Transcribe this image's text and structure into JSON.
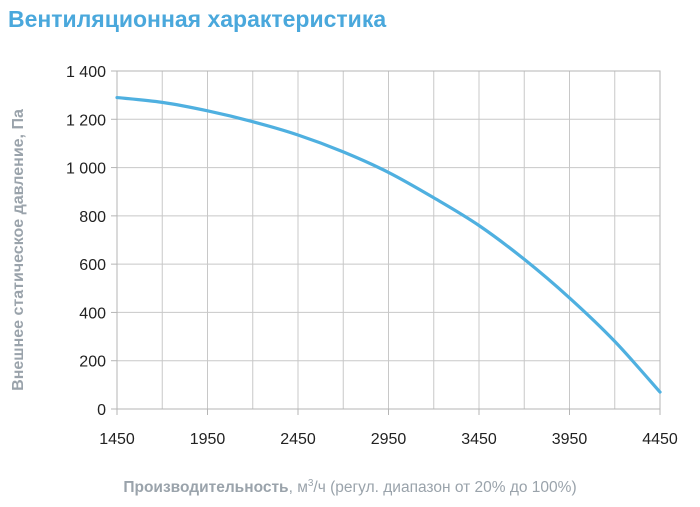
{
  "header": {
    "title": "Вентиляционная характеристика"
  },
  "chart_data": {
    "type": "line",
    "title": "Вентиляционная характеристика",
    "ylabel": "Внешнее статическое давление, Па",
    "xlabel": {
      "main": "Производительность",
      "unit_prefix": ", м",
      "unit_sup": "3",
      "unit_suffix": "/ч",
      "note": " (регул. диапазон от 20% до 100%)"
    },
    "xlim": [
      1450,
      4450
    ],
    "ylim": [
      0,
      1400
    ],
    "x_ticks": [
      1450,
      1950,
      2450,
      2950,
      3450,
      3950,
      4450
    ],
    "x_tick_labels": [
      "1450",
      "1950",
      "2450",
      "2950",
      "3450",
      "3950",
      "4450"
    ],
    "y_ticks": [
      0,
      200,
      400,
      600,
      800,
      1000,
      1200,
      1400
    ],
    "y_tick_labels": [
      "0",
      "200",
      "400",
      "600",
      "800",
      "1 000",
      "1 200",
      "1 400"
    ],
    "x_minor_grid_step": 250,
    "grid": true,
    "series": [
      {
        "name": "Вентиляционная характеристика",
        "color": "#4fb0e0",
        "x": [
          1450,
          1700,
          1950,
          2200,
          2450,
          2700,
          2950,
          3200,
          3450,
          3700,
          3950,
          4200,
          4450
        ],
        "y": [
          1290,
          1270,
          1235,
          1190,
          1135,
          1065,
          980,
          875,
          760,
          620,
          460,
          280,
          70
        ]
      }
    ],
    "colors": {
      "axis_text": "#222222",
      "label": "#9aa3ab",
      "grid": "#c8c8c8"
    }
  }
}
